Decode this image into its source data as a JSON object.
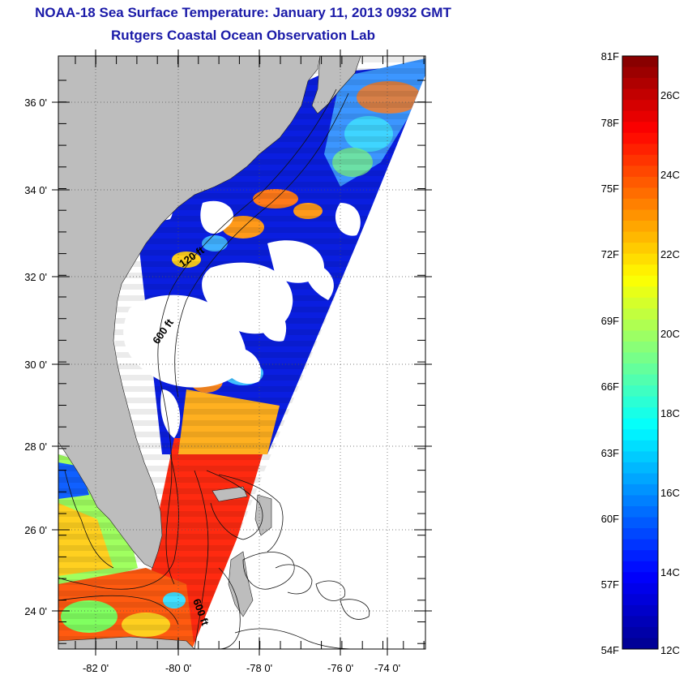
{
  "header": {
    "title": "NOAA-18 Sea Surface Temperature:  January 11, 2013 0932 GMT",
    "subtitle": "Rutgers Coastal Ocean Observation Lab"
  },
  "map": {
    "lat_ticks": [
      "36 0'",
      "34 0'",
      "32 0'",
      "30 0'",
      "28 0'",
      "26 0'",
      "24 0'"
    ],
    "lon_ticks": [
      "-82 0'",
      "-80 0'",
      "-78 0'",
      "-76 0'",
      "-74 0'"
    ],
    "contour_labels": [
      "120 ft",
      "600 ft",
      "600 ft"
    ],
    "colors": {
      "land": "#bdbdbd",
      "cloud_mask": "#ffffff"
    }
  },
  "colorbar": {
    "fahrenheit_labels": [
      "81F",
      "78F",
      "75F",
      "72F",
      "69F",
      "66F",
      "63F",
      "60F",
      "57F",
      "54F"
    ],
    "celsius_labels": [
      "26C",
      "24C",
      "22C",
      "20C",
      "18C",
      "16C",
      "14C",
      "12C"
    ],
    "range_f": [
      54,
      81
    ],
    "range_c": [
      12,
      27
    ],
    "stops": [
      "#00008f",
      "#0000ff",
      "#0080ff",
      "#00ffff",
      "#80ff80",
      "#ffff00",
      "#ff8000",
      "#ff0000",
      "#800000"
    ]
  }
}
